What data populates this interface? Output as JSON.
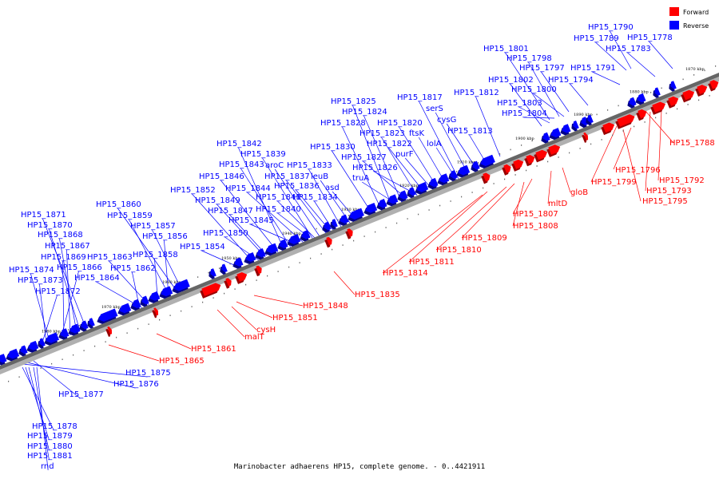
{
  "title": "Marinobacter adhaerens HP15, complete genome. - 0..4421911",
  "legend": [
    {
      "label": "Forward",
      "color": "#ff0000"
    },
    {
      "label": "Reverse",
      "color": "#0000ff"
    }
  ],
  "colors": {
    "forward": "#ff0000",
    "reverse": "#0000ff",
    "axis": "#999999"
  },
  "scale_labels": [
    "1870 kbp",
    "1880 kbp",
    "1890 kbp",
    "1900 kbp",
    "1910 kbp",
    "1920 kbp",
    "1930 kbp",
    "1940 kbp",
    "1950 kbp",
    "1960 kbp",
    "1970 kbp",
    "1980 kbp"
  ],
  "reverse_labels": [
    "HP15_1790",
    "HP15_1789",
    "HP15_1778",
    "HP15_1783",
    "HP15_1801",
    "HP15_1798",
    "HP15_1797",
    "HP15_1791",
    "HP15_1802",
    "HP15_1794",
    "HP15_1800",
    "HP15_1812",
    "HP15_1803",
    "HP15_1817",
    "HP15_1825",
    "HP15_1804",
    "serS",
    "HP15_1824",
    "cysG",
    "HP15_1828",
    "HP15_1820",
    "HP15_1813",
    "ftsK",
    "HP15_1823",
    "HP15_1822",
    "lolA",
    "HP15_1830",
    "HP15_1827",
    "purF",
    "HP15_1826",
    "truA",
    "HP15_1842",
    "HP15_1839",
    "HP15_1843",
    "aroC",
    "HP15_1833",
    "HP15_1837",
    "leuB",
    "HP15_1846",
    "HP15_1844",
    "HP15_1836",
    "asd",
    "HP15_1852",
    "HP15_1841",
    "HP15_1834",
    "HP15_1849",
    "HP15_1840",
    "HP15_1847",
    "HP15_1845",
    "HP15_1850",
    "HP15_1854",
    "HP15_1860",
    "HP15_1859",
    "HP15_1857",
    "HP15_1856",
    "HP15_1858",
    "HP15_1863",
    "HP15_1862",
    "HP15_1864",
    "HP15_1871",
    "HP15_1870",
    "HP15_1868",
    "HP15_1867",
    "HP15_1869",
    "HP15_1866",
    "HP15_1874",
    "HP15_1873",
    "HP15_1872",
    "HP15_1875",
    "HP15_1876",
    "HP15_1877",
    "HP15_1878",
    "HP15_1879",
    "HP15_1880",
    "HP15_1881",
    "rnd"
  ],
  "forward_labels": [
    "HP15_1788",
    "HP15_1796",
    "HP15_1792",
    "HP15_1799",
    "HP15_1793",
    "HP15_1795",
    "gloB",
    "mltD",
    "HP15_1807",
    "HP15_1808",
    "HP15_1809",
    "HP15_1810",
    "HP15_1811",
    "HP15_1814",
    "HP15_1835",
    "HP15_1848",
    "HP15_1851",
    "malT",
    "cysH",
    "HP15_1861",
    "HP15_1865"
  ]
}
